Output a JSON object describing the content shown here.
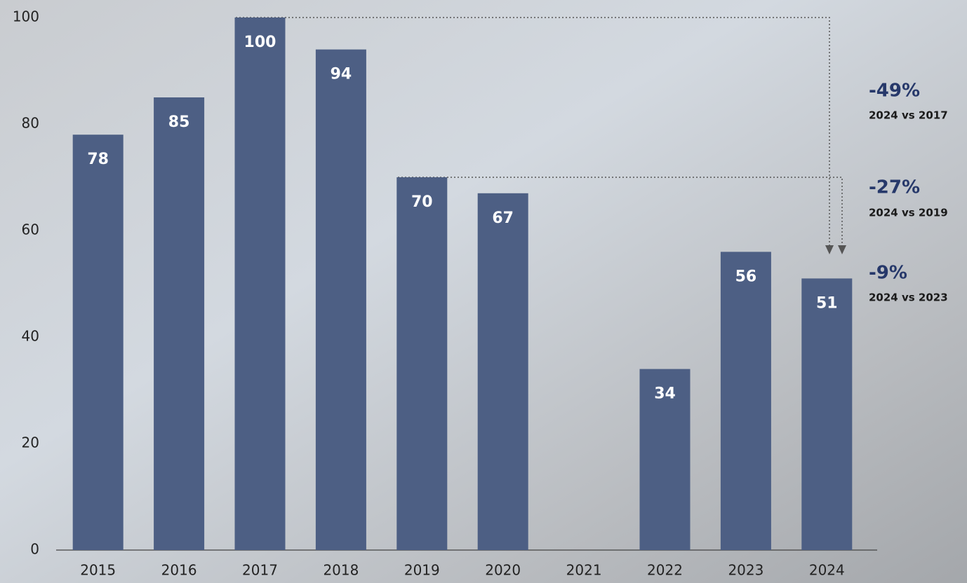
{
  "chart_data": {
    "type": "bar",
    "categories": [
      "2015",
      "2016",
      "2017",
      "2018",
      "2019",
      "2020",
      "2021",
      "2022",
      "2023",
      "2024"
    ],
    "values": [
      78,
      85,
      100,
      94,
      70,
      67,
      null,
      34,
      56,
      51
    ],
    "color": "#4d5f84",
    "ylim": [
      0,
      100
    ],
    "yticks": [
      0,
      20,
      40,
      60,
      80,
      100
    ],
    "annotations": [
      {
        "label": "-49%",
        "note": "2024 vs 2017"
      },
      {
        "label": "-27%",
        "note": "2024 vs 2019"
      },
      {
        "label": "-9%",
        "note": "2024 vs 2023"
      }
    ]
  }
}
